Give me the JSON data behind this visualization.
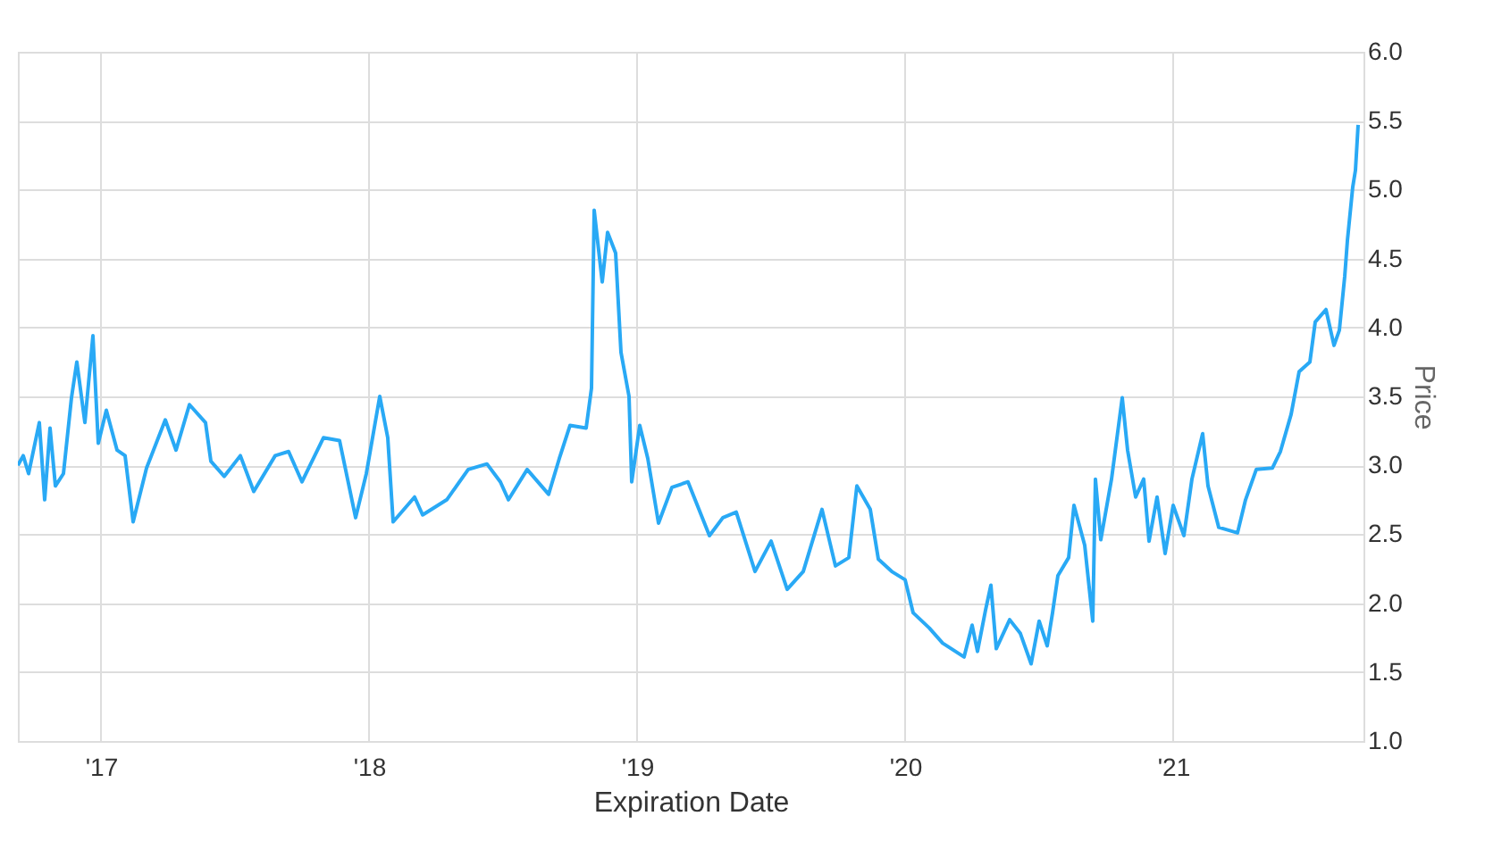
{
  "chart_data": {
    "type": "line",
    "xlabel": "Expiration Date",
    "ylabel": "Price",
    "x": [
      2016.69,
      2016.71,
      2016.73,
      2016.77,
      2016.79,
      2016.81,
      2016.83,
      2016.86,
      2016.89,
      2016.91,
      2016.94,
      2016.97,
      2016.99,
      2017.02,
      2017.06,
      2017.09,
      2017.12,
      2017.17,
      2017.24,
      2017.28,
      2017.33,
      2017.39,
      2017.41,
      2017.46,
      2017.52,
      2017.57,
      2017.65,
      2017.7,
      2017.75,
      2017.83,
      2017.89,
      2017.95,
      2017.99,
      2018.04,
      2018.07,
      2018.09,
      2018.17,
      2018.2,
      2018.29,
      2018.37,
      2018.44,
      2018.49,
      2018.52,
      2018.59,
      2018.67,
      2018.71,
      2018.75,
      2018.81,
      2018.83,
      2018.84,
      2018.87,
      2018.89,
      2018.92,
      2018.94,
      2018.97,
      2018.98,
      2019.01,
      2019.04,
      2019.08,
      2019.13,
      2019.19,
      2019.27,
      2019.32,
      2019.37,
      2019.44,
      2019.5,
      2019.56,
      2019.62,
      2019.69,
      2019.74,
      2019.79,
      2019.82,
      2019.87,
      2019.9,
      2019.95,
      2020.0,
      2020.03,
      2020.09,
      2020.14,
      2020.22,
      2020.25,
      2020.27,
      2020.3,
      2020.32,
      2020.34,
      2020.39,
      2020.43,
      2020.47,
      2020.5,
      2020.53,
      2020.55,
      2020.57,
      2020.61,
      2020.63,
      2020.67,
      2020.7,
      2020.71,
      2020.73,
      2020.77,
      2020.81,
      2020.83,
      2020.86,
      2020.89,
      2020.91,
      2020.94,
      2020.97,
      2021.0,
      2021.04,
      2021.07,
      2021.11,
      2021.13,
      2021.17,
      2021.24,
      2021.27,
      2021.31,
      2021.37,
      2021.4,
      2021.44,
      2021.47,
      2021.51,
      2021.53,
      2021.57,
      2021.6,
      2021.62,
      2021.64,
      2021.65,
      2021.67,
      2021.68,
      2021.69
    ],
    "series": [
      {
        "color": "#29a9f5",
        "values": [
          3.0,
          3.07,
          2.94,
          3.31,
          2.75,
          3.27,
          2.85,
          2.94,
          3.49,
          3.75,
          3.31,
          3.94,
          3.16,
          3.4,
          3.11,
          3.07,
          2.59,
          2.98,
          3.33,
          3.11,
          3.44,
          3.31,
          3.03,
          2.92,
          3.07,
          2.81,
          3.07,
          3.1,
          2.88,
          3.2,
          3.18,
          2.62,
          2.94,
          3.5,
          3.2,
          2.59,
          2.77,
          2.64,
          2.75,
          2.97,
          3.01,
          2.88,
          2.75,
          2.97,
          2.79,
          3.05,
          3.29,
          3.27,
          3.56,
          4.85,
          4.33,
          4.69,
          4.54,
          3.82,
          3.5,
          2.88,
          3.29,
          3.05,
          2.58,
          2.84,
          2.88,
          2.49,
          2.62,
          2.66,
          2.23,
          2.45,
          2.1,
          2.23,
          2.68,
          2.27,
          2.33,
          2.85,
          2.68,
          2.32,
          2.23,
          2.17,
          1.93,
          1.82,
          1.71,
          1.61,
          1.84,
          1.65,
          1.95,
          2.13,
          1.67,
          1.88,
          1.78,
          1.56,
          1.87,
          1.69,
          1.93,
          2.2,
          2.33,
          2.71,
          2.42,
          1.87,
          2.9,
          2.46,
          2.9,
          3.49,
          3.11,
          2.77,
          2.9,
          2.45,
          2.77,
          2.36,
          2.71,
          2.49,
          2.9,
          3.23,
          2.85,
          2.55,
          2.51,
          2.75,
          2.97,
          2.98,
          3.1,
          3.37,
          3.68,
          3.75,
          4.04,
          4.13,
          3.87,
          3.98,
          4.37,
          4.63,
          5.02,
          5.14,
          5.47
        ]
      }
    ],
    "xlim": [
      2016.69,
      2021.71
    ],
    "xticks": [
      {
        "value": 2017,
        "label": "'17"
      },
      {
        "value": 2018,
        "label": "'18"
      },
      {
        "value": 2019,
        "label": "'19"
      },
      {
        "value": 2020,
        "label": "'20"
      },
      {
        "value": 2021,
        "label": "'21"
      }
    ],
    "ylim": [
      1.0,
      6.0
    ],
    "yticks": [
      {
        "value": 1,
        "label": "1.0"
      },
      {
        "value": 1.5,
        "label": "1.5"
      },
      {
        "value": 2,
        "label": "2.0"
      },
      {
        "value": 2.5,
        "label": "2.5"
      },
      {
        "value": 3,
        "label": "3.0"
      },
      {
        "value": 3.5,
        "label": "3.5"
      },
      {
        "value": 4,
        "label": "4.0"
      },
      {
        "value": 4.5,
        "label": "4.5"
      },
      {
        "value": 5,
        "label": "5.0"
      },
      {
        "value": 5.5,
        "label": "5.5"
      },
      {
        "value": 6,
        "label": "6.0"
      }
    ],
    "grid": true,
    "marker": "none",
    "line_style": "solid",
    "legend": false
  }
}
